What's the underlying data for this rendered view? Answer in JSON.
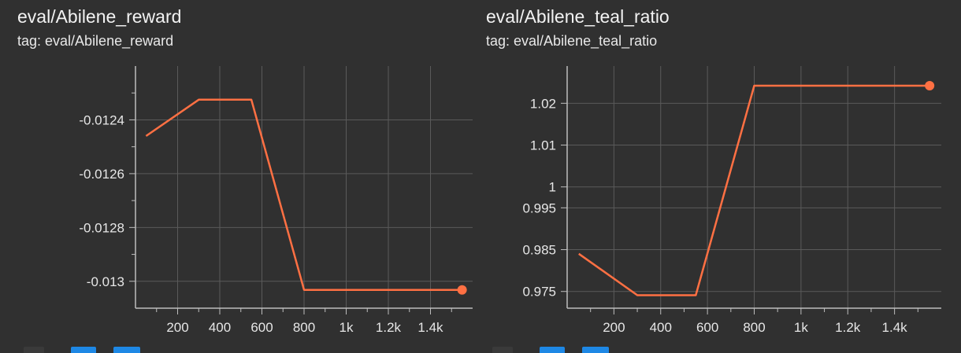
{
  "colors": {
    "background": "#303030",
    "series": "#ff7043",
    "grid": "#5a5a5a",
    "axis": "#bdbdbd",
    "button": "#1e88e5"
  },
  "cards": [
    {
      "title": "eval/Abilene_reward",
      "tag": "tag: eval/Abilene_reward"
    },
    {
      "title": "eval/Abilene_teal_ratio",
      "tag": "tag: eval/Abilene_teal_ratio"
    }
  ],
  "chart_data": [
    {
      "type": "line",
      "title": "eval/Abilene_reward",
      "xlabel": "",
      "ylabel": "",
      "x": [
        50,
        300,
        550,
        800,
        1550
      ],
      "series": [
        {
          "values": [
            -0.01246,
            -0.012325,
            -0.012325,
            -0.013032,
            -0.013032
          ]
        }
      ],
      "xlim": [
        0,
        1600
      ],
      "ylim": [
        -0.0131,
        -0.0122
      ],
      "x_ticks": [
        200,
        400,
        600,
        800,
        1000,
        1200,
        1400
      ],
      "x_tick_labels": [
        "200",
        "400",
        "600",
        "800",
        "1k",
        "1.2k",
        "1.4k"
      ],
      "y_ticks": [
        -0.0124,
        -0.0126,
        -0.0128,
        -0.013
      ],
      "y_tick_labels": [
        "-0.0124",
        "-0.0126",
        "-0.0128",
        "-0.013"
      ],
      "grid": true,
      "legend": "none"
    },
    {
      "type": "line",
      "title": "eval/Abilene_teal_ratio",
      "xlabel": "",
      "ylabel": "",
      "x": [
        50,
        300,
        550,
        800,
        1550
      ],
      "series": [
        {
          "values": [
            0.984,
            0.9741,
            0.9741,
            1.0242,
            1.0242
          ]
        }
      ],
      "xlim": [
        0,
        1600
      ],
      "ylim": [
        0.971,
        1.0289
      ],
      "x_ticks": [
        200,
        400,
        600,
        800,
        1000,
        1200,
        1400
      ],
      "x_tick_labels": [
        "200",
        "400",
        "600",
        "800",
        "1k",
        "1.2k",
        "1.4k"
      ],
      "y_ticks": [
        1.02,
        1.01,
        1,
        0.995,
        0.985,
        0.975
      ],
      "y_tick_labels": [
        "1.02",
        "1.01",
        "1",
        "0.995",
        "0.985",
        "0.975"
      ],
      "grid": true,
      "legend": "none"
    }
  ]
}
